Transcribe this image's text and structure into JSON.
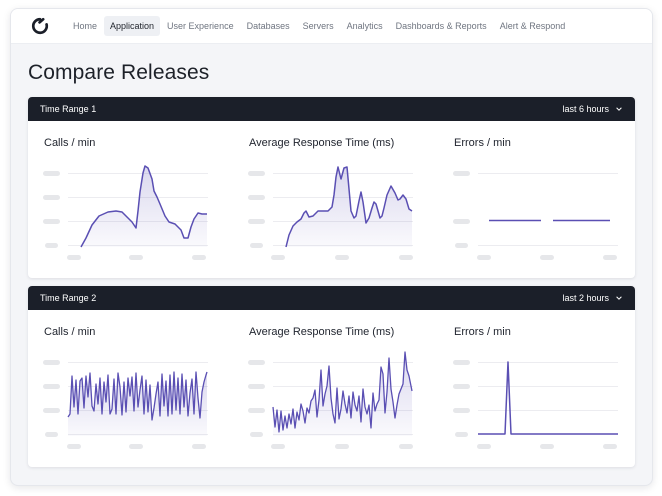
{
  "nav": {
    "items": [
      {
        "label": "Home",
        "active": false
      },
      {
        "label": "Application",
        "active": true
      },
      {
        "label": "User Experience",
        "active": false
      },
      {
        "label": "Databases",
        "active": false
      },
      {
        "label": "Servers",
        "active": false
      },
      {
        "label": "Analytics",
        "active": false
      },
      {
        "label": "Dashboards & Reports",
        "active": false
      },
      {
        "label": "Alert & Respond",
        "active": false
      }
    ]
  },
  "page": {
    "title": "Compare Releases"
  },
  "colors": {
    "accent": "#5a4fb3",
    "header": "#1b1f29",
    "placeholder": "#e6e7ea"
  },
  "panels": [
    {
      "title": "Time Range 1",
      "range": "last 6 hours",
      "charts": [
        {
          "title": "Calls / min"
        },
        {
          "title": "Average Response Time (ms)"
        },
        {
          "title": "Errors / min"
        }
      ]
    },
    {
      "title": "Time Range 2",
      "range": "last 2 hours",
      "charts": [
        {
          "title": "Calls / min"
        },
        {
          "title": "Average Response Time (ms)"
        },
        {
          "title": "Errors / min"
        }
      ]
    }
  ]
}
